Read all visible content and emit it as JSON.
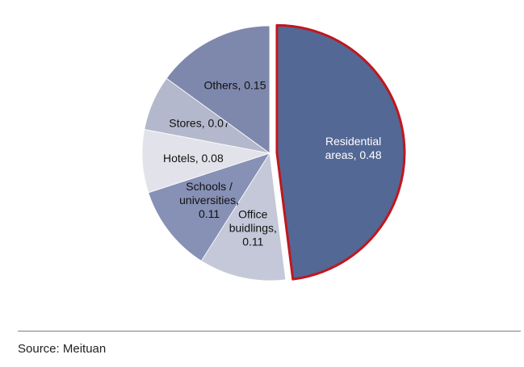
{
  "chart_data": {
    "type": "pie",
    "title": "",
    "slices": [
      {
        "label": "Residential areas",
        "display_lines": [
          "Residential",
          "areas, 0.48"
        ],
        "value": 0.48,
        "color": "#536895",
        "exploded": true,
        "highlight_stroke": "#c0171e",
        "text_color": "#ffffff"
      },
      {
        "label": "Office buidlings",
        "display_lines": [
          "Office",
          "buidlings,",
          "0.11"
        ],
        "value": 0.11,
        "color": "#c4c8d9",
        "exploded": false,
        "highlight_stroke": null,
        "text_color": "#111111"
      },
      {
        "label": "Schools / universities",
        "display_lines": [
          "Schools /",
          "universities,",
          "0.11"
        ],
        "value": 0.11,
        "color": "#8790b5",
        "exploded": false,
        "highlight_stroke": null,
        "text_color": "#111111"
      },
      {
        "label": "Hotels",
        "display_lines": [
          "Hotels, 0.08"
        ],
        "value": 0.08,
        "color": "#e2e3ea",
        "exploded": false,
        "highlight_stroke": null,
        "text_color": "#111111"
      },
      {
        "label": "Stores",
        "display_lines": [
          "Stores, 0.07"
        ],
        "value": 0.07,
        "color": "#b4b8cc",
        "exploded": false,
        "highlight_stroke": null,
        "text_color": "#111111"
      },
      {
        "label": "Others",
        "display_lines": [
          "Others, 0.15"
        ],
        "value": 0.15,
        "color": "#7e88ad",
        "exploded": false,
        "highlight_stroke": null,
        "text_color": "#111111"
      }
    ],
    "legend": "none"
  },
  "footer": {
    "source": "Source: Meituan"
  }
}
